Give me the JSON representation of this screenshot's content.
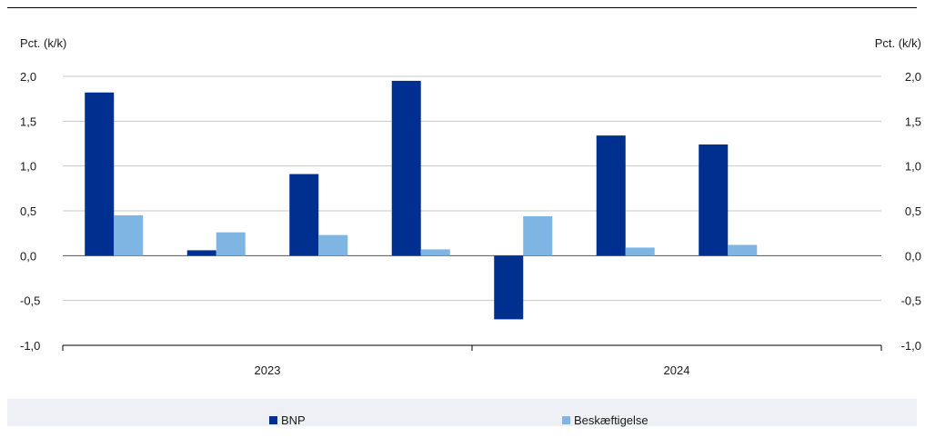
{
  "chart_data": {
    "type": "bar",
    "y_unit_left": "Pct. (k/k)",
    "y_unit_right": "Pct. (k/k)",
    "ylim": [
      -1.0,
      2.0
    ],
    "yticks": [
      2.0,
      1.5,
      1.0,
      0.5,
      0.0,
      -0.5,
      -1.0
    ],
    "ytick_labels": [
      "2,0",
      "1,5",
      "1,0",
      "0,5",
      "0,0",
      "-0,5",
      "-1,0"
    ],
    "grid": true,
    "legend_position": "bottom",
    "periods": 8,
    "groups": [
      {
        "label": "2023",
        "periods": 4
      },
      {
        "label": "2024",
        "periods": 4
      }
    ],
    "series": [
      {
        "name": "BNP",
        "color": "#00308f",
        "values": [
          1.82,
          0.06,
          0.91,
          1.95,
          -0.71,
          1.34,
          1.24,
          null
        ]
      },
      {
        "name": "Beskæftigelse",
        "color": "#7fb5e2",
        "values": [
          0.45,
          0.26,
          0.23,
          0.07,
          0.44,
          0.09,
          0.12,
          null
        ]
      }
    ]
  }
}
